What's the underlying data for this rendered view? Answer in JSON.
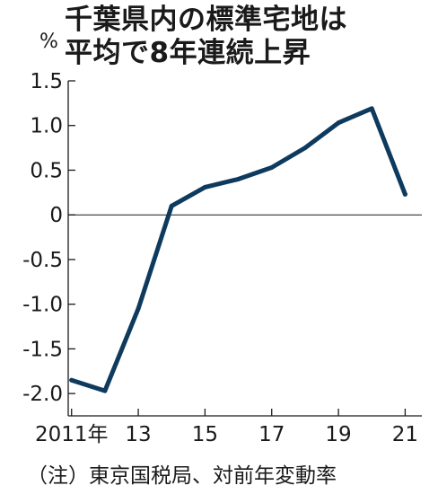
{
  "header": {
    "title_line1": "千葉県内の標準宅地は",
    "title_line2": "平均で8年連続上昇",
    "unit": "%"
  },
  "footer": {
    "note": "（注）東京国税局、対前年変動率"
  },
  "chart_data": {
    "type": "line",
    "title": "千葉県内の標準宅地は平均で8年連続上昇",
    "ylabel": "%",
    "x": [
      2011,
      2012,
      2013,
      2014,
      2015,
      2016,
      2017,
      2018,
      2019,
      2020,
      2021
    ],
    "series": [
      {
        "values": [
          -1.85,
          -1.97,
          -1.05,
          0.1,
          0.31,
          0.4,
          0.53,
          0.75,
          1.03,
          1.19,
          0.23
        ]
      }
    ],
    "xticks": [
      {
        "value": 2011,
        "label": "2011年"
      },
      {
        "value": 2013,
        "label": "13"
      },
      {
        "value": 2015,
        "label": "15"
      },
      {
        "value": 2017,
        "label": "17"
      },
      {
        "value": 2019,
        "label": "19"
      },
      {
        "value": 2021,
        "label": "21"
      }
    ],
    "yticks": [
      {
        "value": 1.5,
        "label": "1.5"
      },
      {
        "value": 1.0,
        "label": "1.0"
      },
      {
        "value": 0.5,
        "label": "0.5"
      },
      {
        "value": 0,
        "label": "0"
      },
      {
        "value": -0.5,
        "label": "-0.5"
      },
      {
        "value": -1.0,
        "label": "-1.0"
      },
      {
        "value": -1.5,
        "label": "-1.5"
      },
      {
        "value": -2.0,
        "label": "-2.0"
      }
    ],
    "xlim": [
      2010.9,
      2021.5
    ],
    "ylim": [
      -2.25,
      1.5
    ],
    "grid": false,
    "colors": {
      "line": "#0e3a5e",
      "axis": "#1a1a1a"
    }
  }
}
